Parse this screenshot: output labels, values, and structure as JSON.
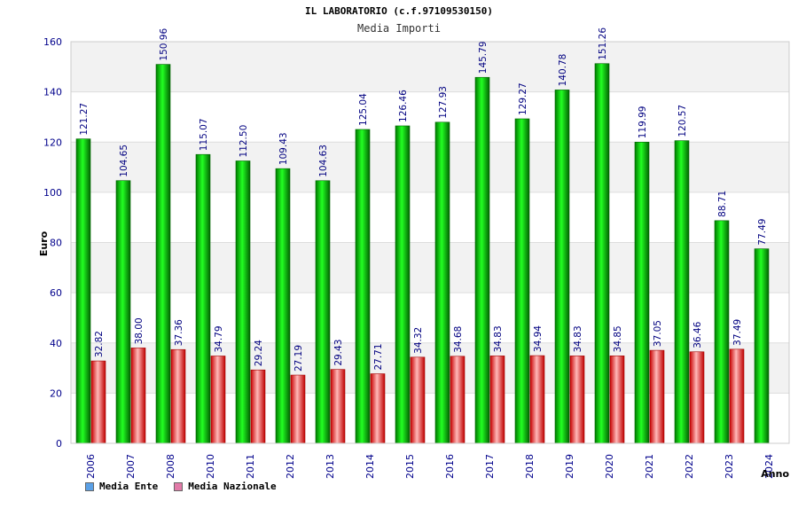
{
  "chart_data": {
    "type": "bar",
    "title": "IL LABORATORIO (c.f.97109530150)",
    "subtitle": "Media Importi",
    "ylabel": "Euro",
    "xlabel": "Anno",
    "ylim": [
      0,
      160
    ],
    "yticks": [
      0,
      20,
      40,
      60,
      80,
      100,
      120,
      140,
      160
    ],
    "grid": true,
    "legend_position": "bottom-left",
    "categories": [
      "2006",
      "2007",
      "2008",
      "2010",
      "2011",
      "2012",
      "2013",
      "2014",
      "2015",
      "2016",
      "2017",
      "2018",
      "2019",
      "2020",
      "2021",
      "2022",
      "2023",
      "2024"
    ],
    "series": [
      {
        "name": "Media Ente",
        "color": "#00b000",
        "legend_color": "#5aa0e6",
        "values": [
          121.27,
          104.65,
          150.96,
          115.07,
          112.5,
          109.43,
          104.63,
          125.04,
          126.46,
          127.93,
          145.79,
          129.27,
          140.78,
          151.26,
          119.99,
          120.57,
          88.71,
          77.49
        ]
      },
      {
        "name": "Media Nazionale",
        "color": "#e01010",
        "legend_color": "#e27aa8",
        "values": [
          32.82,
          38.0,
          37.36,
          34.79,
          29.24,
          27.19,
          29.43,
          27.71,
          34.32,
          34.68,
          34.83,
          34.94,
          34.83,
          34.85,
          37.05,
          36.46,
          37.49,
          null
        ]
      }
    ]
  }
}
